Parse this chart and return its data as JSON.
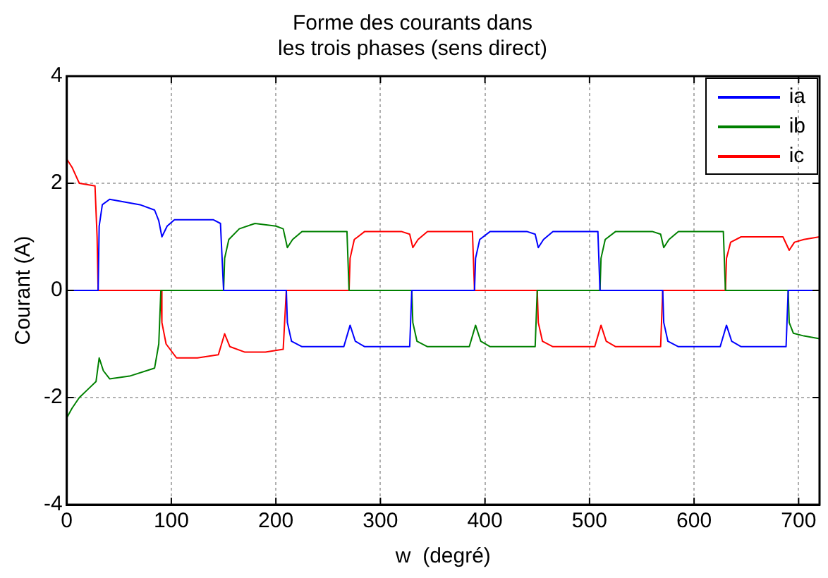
{
  "chart_data": {
    "type": "line",
    "title": "Forme des courants dans\nles trois phases (sens direct)",
    "xlabel": "w  (degré)",
    "ylabel": "Courant (A)",
    "xlim": [
      0,
      720
    ],
    "xticks": [
      0,
      100,
      200,
      300,
      400,
      500,
      600,
      700
    ],
    "ylim": [
      -4,
      4
    ],
    "yticks": [
      -4,
      -2,
      0,
      2,
      4
    ],
    "grid": true,
    "legend": "top right",
    "marker": "none",
    "line_style": "solid",
    "series": [
      {
        "name": "ia",
        "color": "#0000ff",
        "x": [
          0,
          30,
          31,
          34,
          41,
          55,
          70,
          84,
          88,
          91,
          96,
          103,
          140,
          147,
          150,
          210,
          211,
          215,
          225,
          265,
          271,
          276,
          285,
          328,
          330,
          390,
          391,
          395,
          405,
          440,
          448,
          451,
          456,
          465,
          508,
          510,
          570,
          571,
          575,
          585,
          625,
          631,
          636,
          645,
          688,
          690,
          720
        ],
        "values": [
          0,
          0,
          1.2,
          1.6,
          1.7,
          1.65,
          1.6,
          1.5,
          1.3,
          1.0,
          1.2,
          1.32,
          1.32,
          1.25,
          0,
          0,
          -0.6,
          -0.95,
          -1.05,
          -1.05,
          -0.65,
          -0.95,
          -1.05,
          -1.05,
          0,
          0,
          0.6,
          0.95,
          1.1,
          1.1,
          1.05,
          0.8,
          0.95,
          1.1,
          1.1,
          0,
          0,
          -0.6,
          -0.95,
          -1.05,
          -1.05,
          -0.65,
          -0.95,
          -1.05,
          -1.05,
          0,
          0
        ]
      },
      {
        "name": "ib",
        "color": "#008000",
        "x": [
          0,
          5,
          12,
          20,
          28,
          31,
          35,
          41,
          60,
          84,
          88,
          90,
          150,
          151,
          155,
          165,
          180,
          200,
          207,
          211,
          216,
          225,
          268,
          270,
          330,
          331,
          335,
          345,
          385,
          391,
          396,
          405,
          448,
          450,
          510,
          511,
          515,
          525,
          560,
          568,
          571,
          576,
          585,
          628,
          630,
          690,
          691,
          695,
          705,
          720
        ],
        "values": [
          -2.38,
          -2.2,
          -2.0,
          -1.85,
          -1.7,
          -1.26,
          -1.5,
          -1.65,
          -1.6,
          -1.45,
          -1.0,
          0,
          0,
          0.6,
          0.95,
          1.15,
          1.25,
          1.2,
          1.15,
          0.8,
          0.95,
          1.1,
          1.1,
          0,
          0,
          -0.6,
          -0.95,
          -1.05,
          -1.05,
          -0.65,
          -0.95,
          -1.05,
          -1.05,
          0,
          0,
          0.6,
          0.95,
          1.1,
          1.1,
          1.05,
          0.8,
          0.95,
          1.1,
          1.1,
          0,
          0,
          -0.6,
          -0.8,
          -0.85,
          -0.9
        ]
      },
      {
        "name": "ic",
        "color": "#ff0000",
        "x": [
          0,
          5,
          12,
          27,
          29,
          30,
          90,
          91,
          95,
          105,
          125,
          145,
          151,
          156,
          170,
          190,
          207,
          210,
          270,
          271,
          275,
          285,
          320,
          328,
          331,
          336,
          345,
          388,
          390,
          450,
          451,
          455,
          465,
          505,
          511,
          516,
          525,
          568,
          570,
          630,
          631,
          635,
          645,
          685,
          691,
          696,
          705,
          720
        ],
        "values": [
          2.45,
          2.3,
          2.0,
          1.95,
          1.0,
          0,
          0,
          -0.6,
          -1.0,
          -1.26,
          -1.26,
          -1.2,
          -0.81,
          -1.05,
          -1.15,
          -1.15,
          -1.1,
          0,
          0,
          0.6,
          0.95,
          1.1,
          1.1,
          1.05,
          0.8,
          0.95,
          1.1,
          1.1,
          0,
          0,
          -0.6,
          -0.95,
          -1.05,
          -1.05,
          -0.65,
          -0.95,
          -1.05,
          -1.05,
          0,
          0,
          0.6,
          0.9,
          1.0,
          1.0,
          0.75,
          0.9,
          0.95,
          1.0
        ]
      }
    ]
  }
}
